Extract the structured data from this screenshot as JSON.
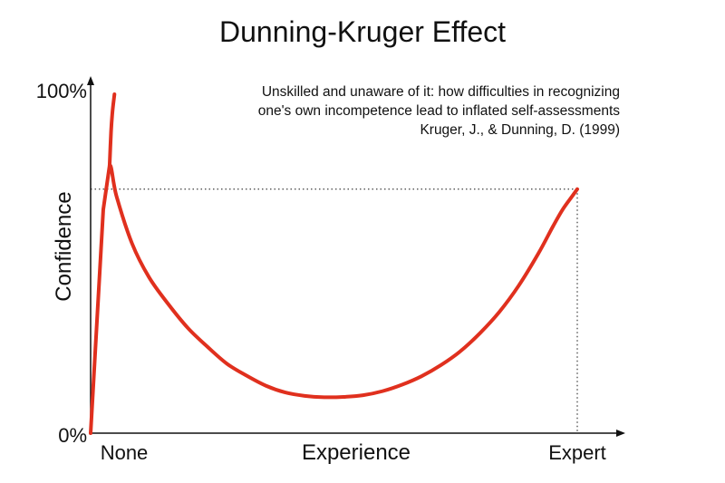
{
  "chart_data": {
    "type": "line",
    "title": "Dunning-Kruger Effect",
    "annotation": [
      "Unskilled and unaware of it: how difficulties in recognizing",
      "one's own incompetence lead to inflated self-assessments",
      "Kruger, J., & Dunning, D. (1999)"
    ],
    "xlabel": "Experience",
    "ylabel": "Confidence",
    "x_ticks": [
      "None",
      "Expert"
    ],
    "y_ticks": [
      "0%",
      "100%"
    ],
    "xlim": [
      0,
      100
    ],
    "ylim": [
      0,
      100
    ],
    "series": [
      {
        "color": "#e0301e",
        "x": [
          0,
          2.6,
          3.9,
          5.3,
          8.5,
          12,
          16,
          20,
          24,
          28,
          32,
          36,
          40,
          44,
          48,
          52,
          56,
          60,
          64,
          68,
          72,
          76,
          80,
          84,
          88,
          92,
          95,
          97,
          99,
          100
        ],
        "y": [
          0,
          66,
          79,
          70,
          56,
          46,
          38,
          31,
          25.5,
          20.5,
          17,
          14,
          12,
          11,
          10.6,
          10.7,
          11.2,
          12.4,
          14.3,
          16.8,
          20.1,
          24.2,
          29.5,
          35.8,
          43.6,
          53,
          61,
          66,
          70,
          72
        ]
      },
      {
        "color": "#e0301e",
        "x": [
          3.9,
          4.2,
          4.5,
          4.9
        ],
        "y": [
          79,
          89,
          95,
          100
        ]
      }
    ],
    "reference_lines": {
      "y": 72,
      "x": 100,
      "style": "dotted"
    },
    "grid": false
  }
}
